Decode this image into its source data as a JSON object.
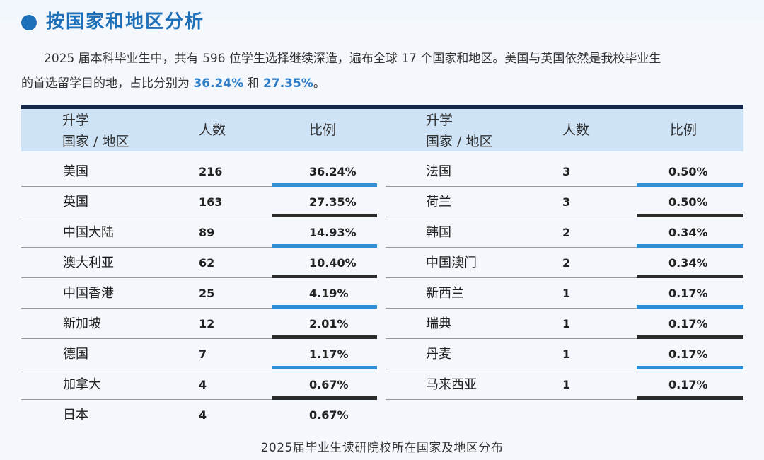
{
  "section": {
    "title": "按国家和地区分析",
    "paragraph": {
      "line1": "2025 届本科毕业生中，共有 596 位学生选择继续深造，遍布全球 17 个国家和地区。美国与英国依然是我校毕业生",
      "line2_prefix": "的首选留学目的地，占比分别为 ",
      "us_share": "36.24%",
      "connector": " 和 ",
      "uk_share": "27.35%",
      "line2_suffix": "。"
    }
  },
  "table": {
    "headers": {
      "country_line1": "升学",
      "country_line2": "国家 / 地区",
      "count": "人数",
      "ratio": "比例"
    },
    "left": [
      {
        "country": "美国",
        "count": "216",
        "ratio": "36.24%"
      },
      {
        "country": "英国",
        "count": "163",
        "ratio": "27.35%"
      },
      {
        "country": "中国大陆",
        "count": "89",
        "ratio": "14.93%"
      },
      {
        "country": "澳大利亚",
        "count": "62",
        "ratio": "10.40%"
      },
      {
        "country": "中国香港",
        "count": "25",
        "ratio": "4.19%"
      },
      {
        "country": "新加坡",
        "count": "12",
        "ratio": "2.01%"
      },
      {
        "country": "德国",
        "count": "7",
        "ratio": "1.17%"
      },
      {
        "country": "加拿大",
        "count": "4",
        "ratio": "0.67%"
      },
      {
        "country": "日本",
        "count": "4",
        "ratio": "0.67%"
      }
    ],
    "right": [
      {
        "country": "法国",
        "count": "3",
        "ratio": "0.50%"
      },
      {
        "country": "荷兰",
        "count": "3",
        "ratio": "0.50%"
      },
      {
        "country": "韩国",
        "count": "2",
        "ratio": "0.34%"
      },
      {
        "country": "中国澳门",
        "count": "2",
        "ratio": "0.34%"
      },
      {
        "country": "新西兰",
        "count": "1",
        "ratio": "0.17%"
      },
      {
        "country": "瑞典",
        "count": "1",
        "ratio": "0.17%"
      },
      {
        "country": "丹麦",
        "count": "1",
        "ratio": "0.17%"
      },
      {
        "country": "马来西亚",
        "count": "1",
        "ratio": "0.17%"
      }
    ]
  },
  "caption": "2025届毕业生读研院校所在国家及地区分布",
  "colors": {
    "accent_blue": "#2f8fd6",
    "accent_dark": "#2b2b2b",
    "header_bg": "#cfe3f6",
    "title_blue": "#1d6fb8"
  }
}
